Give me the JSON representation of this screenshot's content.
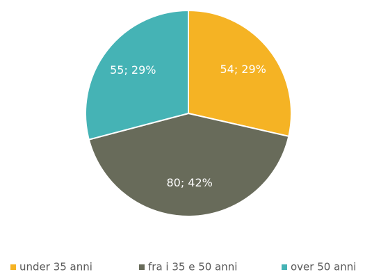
{
  "chart_data": {
    "type": "pie",
    "categories": [
      "under 35 anni",
      "fra i 35 e 50 anni",
      "over 50 anni"
    ],
    "values": [
      54,
      80,
      55
    ],
    "value_labels": [
      "54; 29%",
      "80; 42%",
      "55; 29%"
    ],
    "colors": [
      "#f5b324",
      "#686b5a",
      "#45b3b5"
    ],
    "legend": "bottom"
  }
}
